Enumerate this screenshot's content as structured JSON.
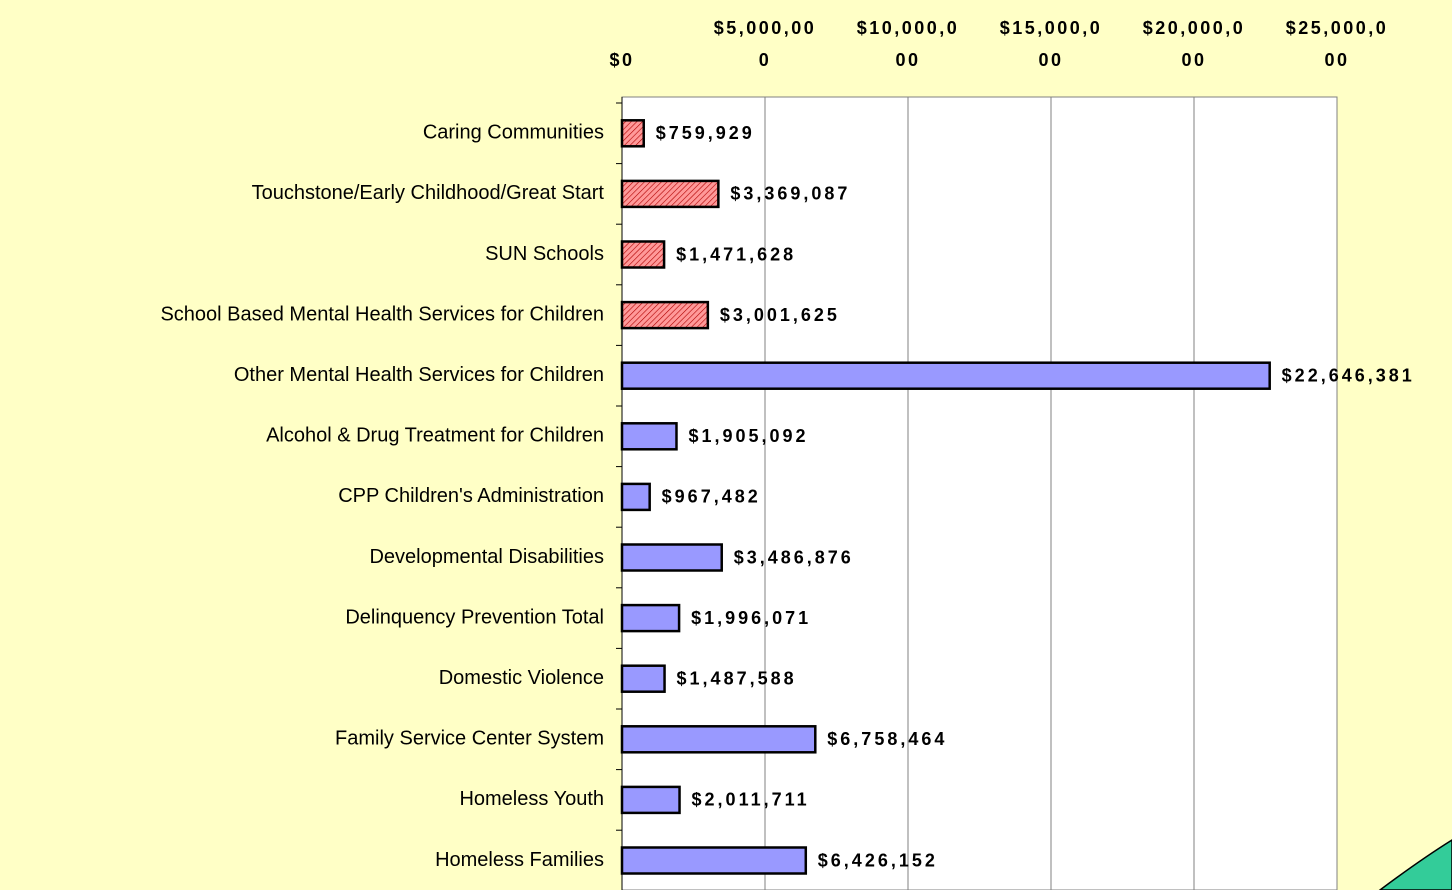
{
  "chart_data": {
    "type": "hbar",
    "categories": [
      "Caring Communities",
      "Touchstone/Early Childhood/Great Start",
      "SUN Schools",
      "School Based Mental Health Services for Children",
      "Other Mental Health Services for Children",
      "Alcohol & Drug Treatment for Children",
      "CPP Children's Administration",
      "Developmental Disabilities",
      "Delinquency Prevention Total",
      "Domestic Violence",
      "Family Service Center System",
      "Homeless Youth",
      "Homeless Families"
    ],
    "values": [
      759929,
      3369087,
      1471628,
      3001625,
      22646381,
      1905092,
      967482,
      3486876,
      1996071,
      1487588,
      6758464,
      2011711,
      6426152
    ],
    "value_labels": [
      "$759,929",
      "$3,369,087",
      "$1,471,628",
      "$3,001,625",
      "$22,646,381",
      "$1,905,092",
      "$967,482",
      "$3,486,876",
      "$1,996,071",
      "$1,487,588",
      "$6,758,464",
      "$2,011,711",
      "$6,426,152"
    ],
    "colors": [
      "#ff9999",
      "#ff9999",
      "#ff9999",
      "#ff9999",
      "#9999ff",
      "#9999ff",
      "#9999ff",
      "#9999ff",
      "#9999ff",
      "#9999ff",
      "#9999ff",
      "#9999ff",
      "#9999ff"
    ],
    "hatched": [
      true,
      true,
      true,
      true,
      false,
      false,
      false,
      false,
      false,
      false,
      false,
      false,
      false
    ],
    "xlim": [
      0,
      25000000
    ],
    "xticks": [
      {
        "value": 0,
        "label": "$0"
      },
      {
        "value": 5000000,
        "label": "$5,000,000"
      },
      {
        "value": 10000000,
        "label": "$10,000,000"
      },
      {
        "value": 15000000,
        "label": "$15,000,000"
      },
      {
        "value": 20000000,
        "label": "$20,000,000"
      },
      {
        "value": 25000000,
        "label": "$25,000,000"
      }
    ],
    "grid": true
  }
}
